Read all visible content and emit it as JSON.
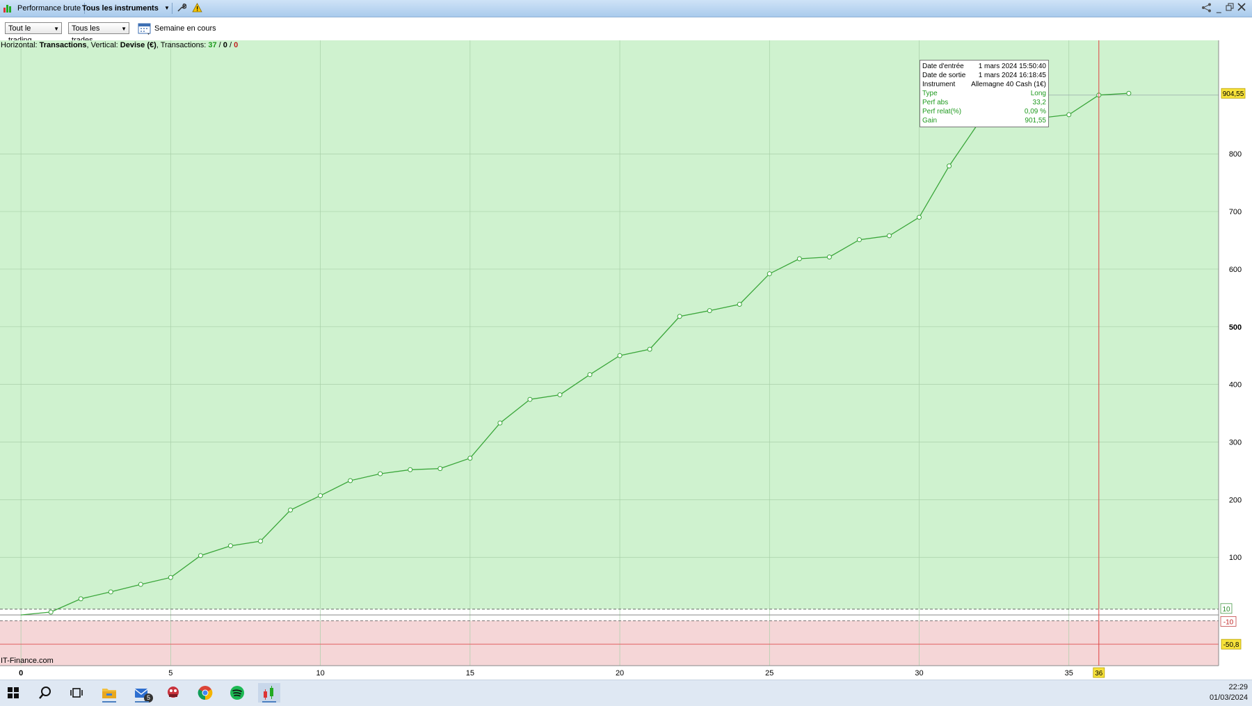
{
  "titlebar": {
    "tab_performance": "Performance brute",
    "tab_instruments": "Tous les instruments"
  },
  "toolbar": {
    "dropdown_trading": "Tout le trading",
    "dropdown_trades": "Tous les trades",
    "period_label": "Semaine en cours"
  },
  "chart_info": {
    "h_label": "Horizontal: ",
    "h_value": "Transactions",
    "v_label": ", Vertical: ",
    "v_value": "Devise (€)",
    "t_label": ", Transactions: ",
    "count_total": "37",
    "sep1": " / ",
    "count_zero": "0",
    "sep2": " / ",
    "count_loss": "0"
  },
  "watermark": "IT-Finance.com",
  "chart_data": {
    "type": "line",
    "x": [
      0,
      1,
      2,
      3,
      4,
      5,
      6,
      7,
      8,
      9,
      10,
      11,
      12,
      13,
      14,
      15,
      16,
      17,
      18,
      19,
      20,
      21,
      22,
      23,
      24,
      25,
      26,
      27,
      28,
      29,
      30,
      31,
      32,
      33,
      34,
      35,
      36,
      37
    ],
    "values": [
      0,
      5,
      28,
      40,
      53,
      65,
      103,
      120,
      128,
      182,
      207,
      233,
      245,
      252,
      254,
      272,
      333,
      374,
      382,
      417,
      450,
      461,
      518,
      528,
      539,
      592,
      618,
      621,
      651,
      658,
      690,
      779,
      855,
      863,
      862,
      868,
      902,
      905
    ],
    "xlim": [
      -0.7,
      40
    ],
    "ylim": [
      -88,
      997
    ],
    "x_ticks": [
      0,
      5,
      10,
      15,
      20,
      25,
      30,
      35
    ],
    "x_tick_labels": [
      "0",
      "5",
      "10",
      "15",
      "20",
      "25",
      "30",
      "35"
    ],
    "y_ticks": [
      100,
      200,
      300,
      400,
      500,
      600,
      700,
      800
    ],
    "y_tick_labels": [
      "100",
      "200",
      "300",
      "400",
      "500",
      "600",
      "700",
      "800"
    ],
    "marker_line_x": 36,
    "marker_x_label": "36",
    "current_value_label": "904,55",
    "band_upper_label": "10",
    "band_lower_label": "-10",
    "min_label": "-50,8",
    "colors": {
      "profit_bg": "#cff2cf",
      "loss_bg": "#f5d6d7",
      "line": "#3aa63a",
      "marker_line": "#e04040",
      "label_yellow": "#f7e23b"
    }
  },
  "tooltip": {
    "rows": [
      {
        "k": "Date d'entrée",
        "v": "1 mars 2024 15:50:40",
        "color": "#000000"
      },
      {
        "k": "Date de sortie",
        "v": "1 mars 2024 16:18:45",
        "color": "#000000"
      },
      {
        "k": "Instrument",
        "v": "Allemagne 40 Cash (1€)",
        "color": "#000000"
      },
      {
        "k": "Type",
        "v": "Long",
        "color": "#1f9a1f"
      },
      {
        "k": "Perf abs",
        "v": "33,2",
        "color": "#1f9a1f"
      },
      {
        "k": "Perf relat(%)",
        "v": "0,09 %",
        "color": "#1f9a1f"
      },
      {
        "k": "Gain",
        "v": "901,55",
        "color": "#1f9a1f"
      }
    ]
  },
  "taskbar": {
    "mail_badge": "5",
    "time": "22:29",
    "date": "01/03/2024"
  }
}
